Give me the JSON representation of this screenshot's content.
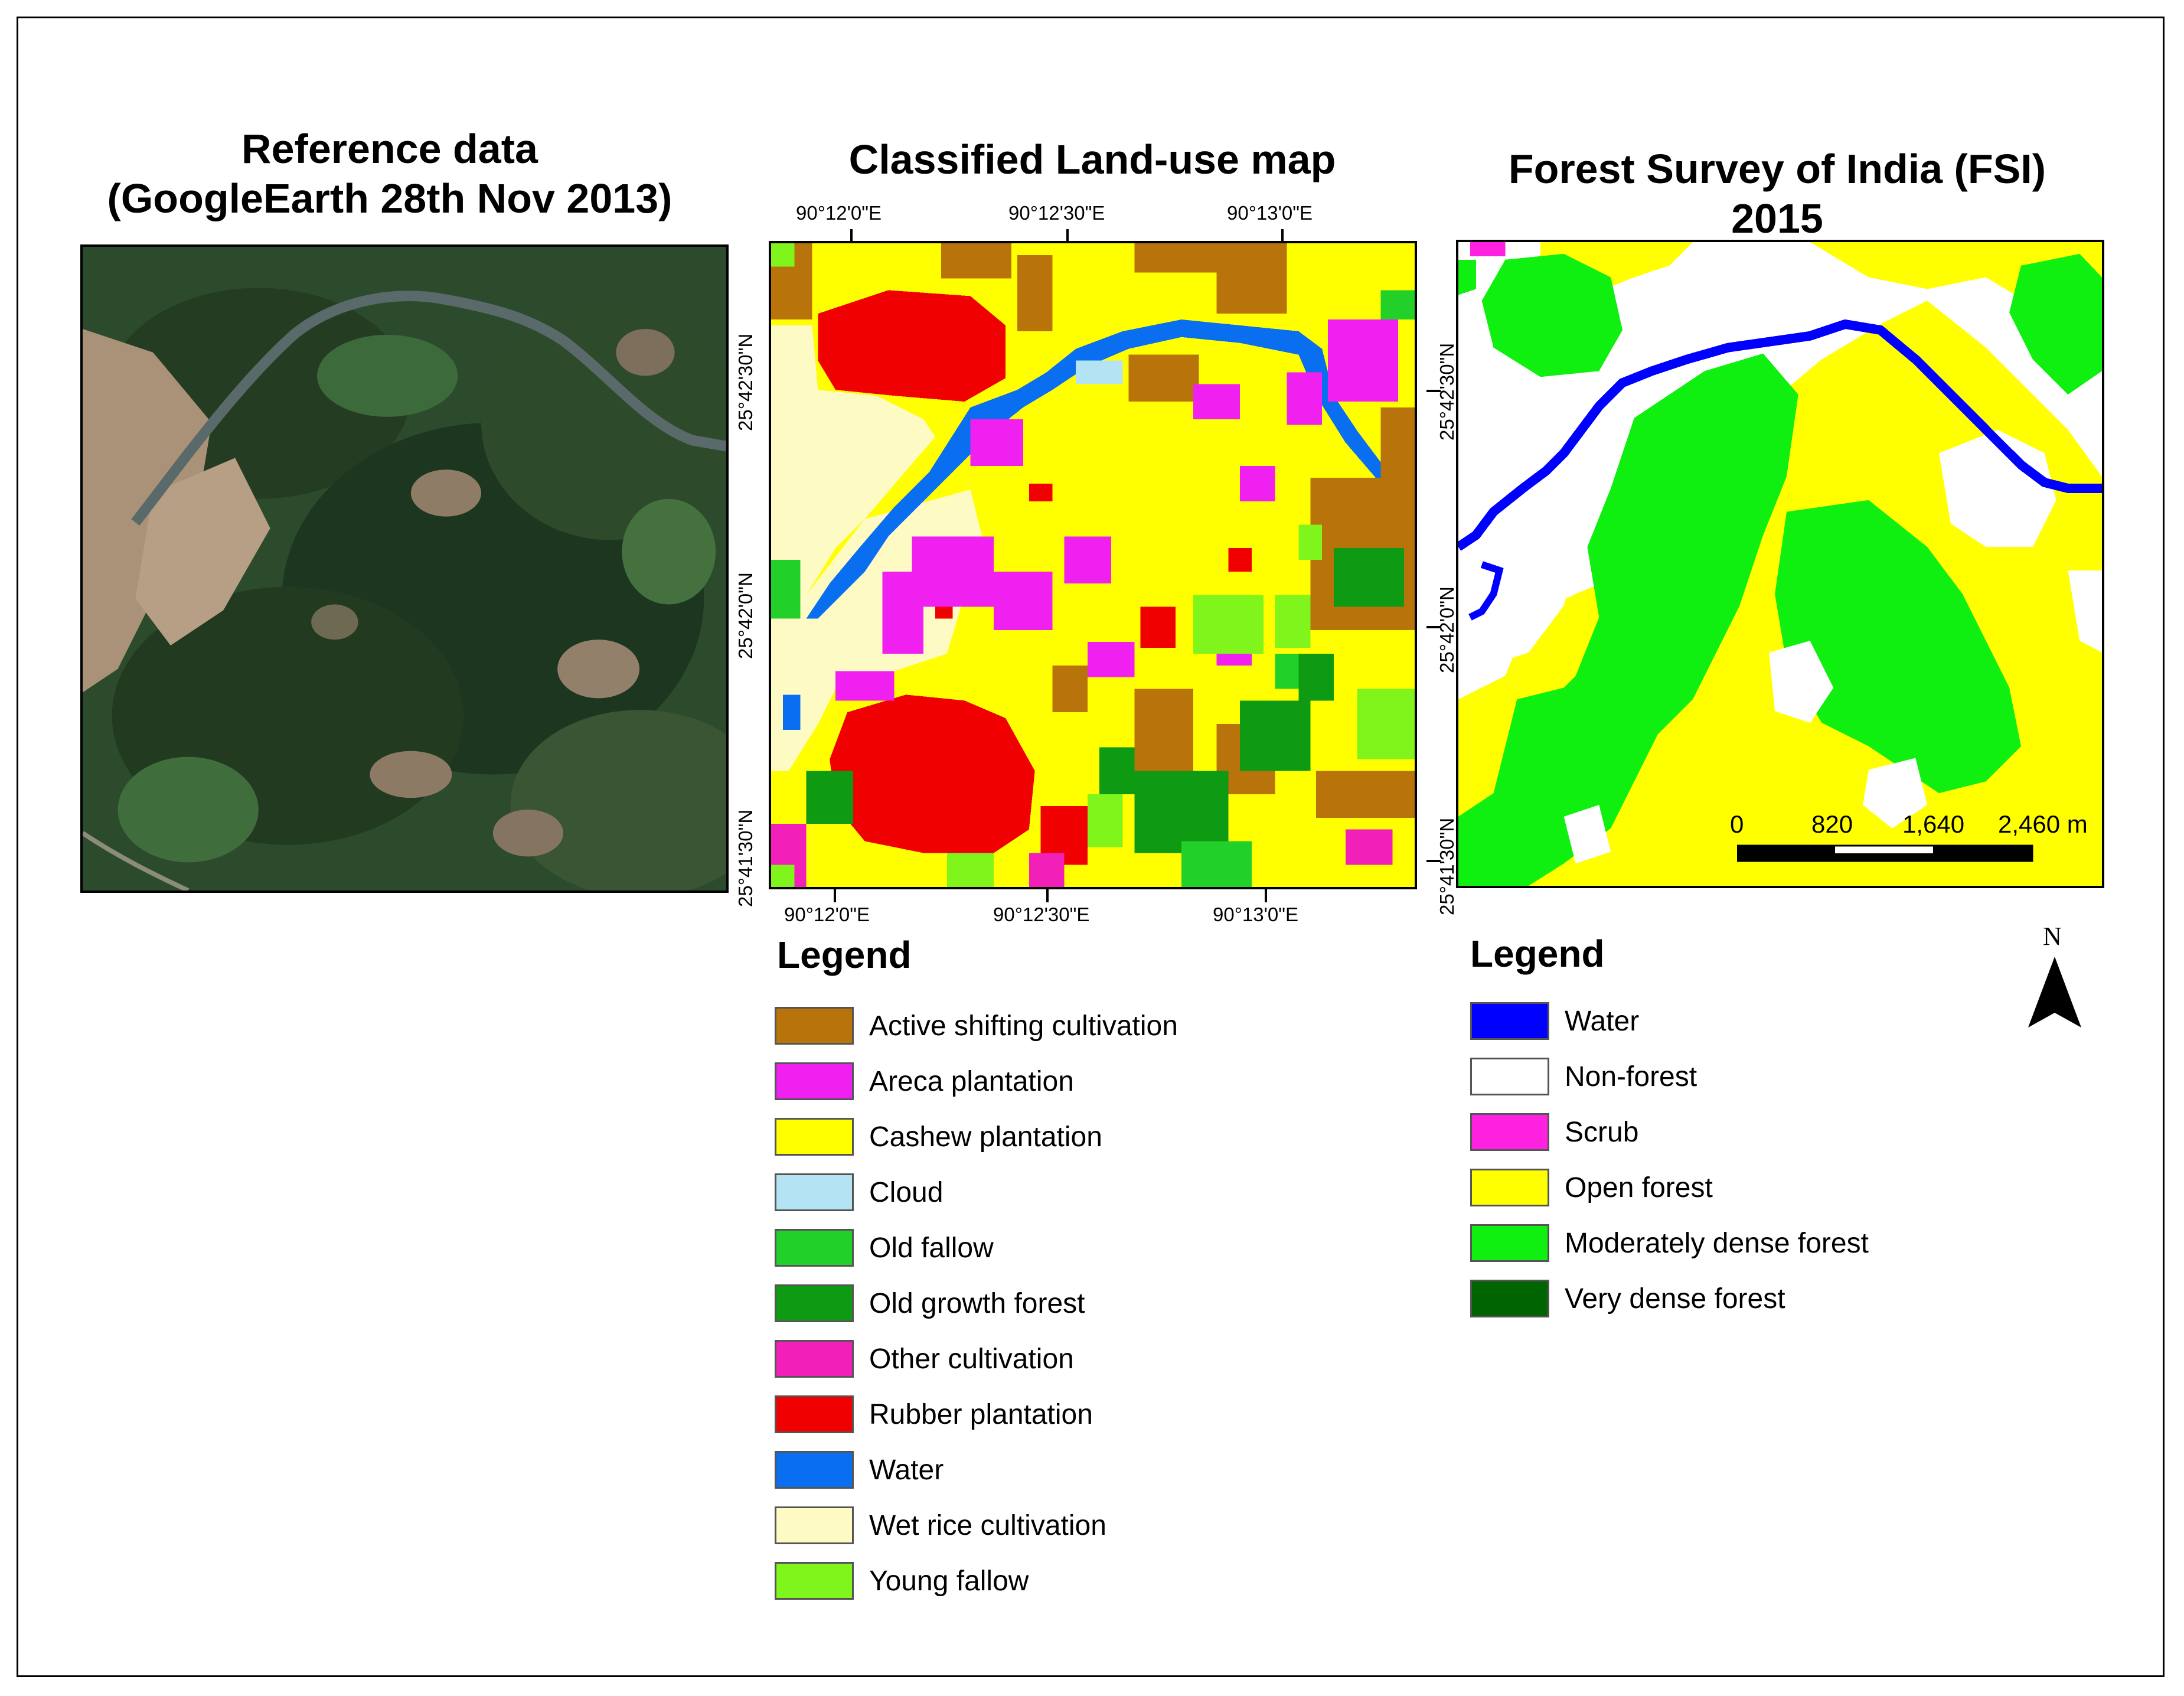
{
  "panels": {
    "reference": {
      "title_line1": "Reference data",
      "title_line2": "(GoogleEarth 28th Nov 2013)"
    },
    "classified": {
      "title": "Classified Land-use map",
      "top_ticks": [
        "90°12'0\"E",
        "90°12'30\"E",
        "90°13'0\"E"
      ],
      "bottom_ticks": [
        "90°12'0\"E",
        "90°12'30\"E",
        "90°13'0\"E"
      ],
      "left_ticks": [
        "25°42'30\"N",
        "25°42'0\"N",
        "25°41'30\"N"
      ],
      "legend_title": "Legend",
      "legend": [
        {
          "label": "Active shifting cultivation",
          "color": "#b8730a"
        },
        {
          "label": "Areca plantation",
          "color": "#f020f0"
        },
        {
          "label": "Cashew plantation",
          "color": "#ffff00"
        },
        {
          "label": "Cloud",
          "color": "#b4e4f4"
        },
        {
          "label": "Old fallow",
          "color": "#22d02a"
        },
        {
          "label": "Old growth forest",
          "color": "#0e9a12"
        },
        {
          "label": "Other cultivation",
          "color": "#f21fb8"
        },
        {
          "label": "Rubber plantation",
          "color": "#f00000"
        },
        {
          "label": "Water",
          "color": "#0a6ef0"
        },
        {
          "label": "Wet rice cultivation",
          "color": "#fdfac4"
        },
        {
          "label": "Young fallow",
          "color": "#80f51c"
        }
      ]
    },
    "fsi": {
      "title_line1": "Forest Survey of India (FSI)",
      "title_line2": "2015",
      "right_ticks": [
        "25°42'30\"N",
        "25°42'0\"N",
        "25°41'30\"N"
      ],
      "scale_labels": [
        "0",
        "820",
        "1,640",
        "2,460 m"
      ],
      "north_label": "N",
      "legend_title": "Legend",
      "legend": [
        {
          "label": "Water",
          "color": "#0000ff"
        },
        {
          "label": "Non-forest",
          "color": "#ffffff"
        },
        {
          "label": "Scrub",
          "color": "#ff20e0"
        },
        {
          "label": "Open forest",
          "color": "#ffff00"
        },
        {
          "label": "Moderately dense forest",
          "color": "#10f010"
        },
        {
          "label": "Very dense forest",
          "color": "#006400"
        }
      ]
    }
  }
}
